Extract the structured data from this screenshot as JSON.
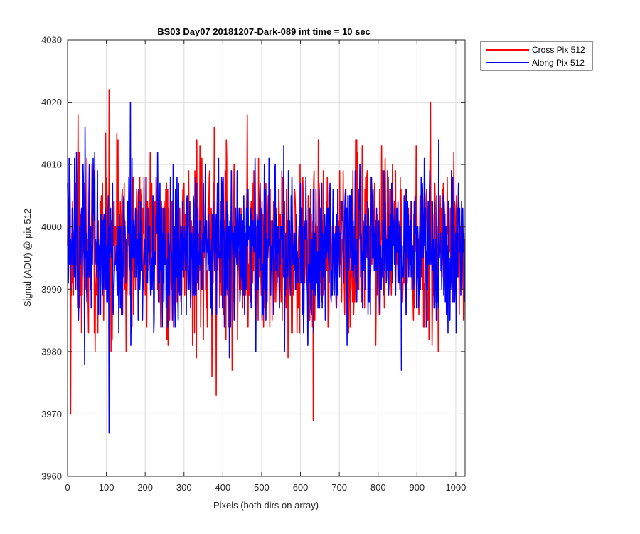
{
  "chart_data": {
    "type": "line",
    "title": "BS03 Day07 20181207-Dark-089 int time = 10 sec",
    "xlabel": "Pixels (both dirs on array)",
    "ylabel": "Signal (ADU) @ pix 512",
    "xlim": [
      0,
      1024
    ],
    "ylim": [
      3960,
      4030
    ],
    "xticks": [
      0,
      100,
      200,
      300,
      400,
      500,
      600,
      700,
      800,
      900,
      1000
    ],
    "yticks": [
      3960,
      3970,
      3980,
      3990,
      4000,
      4010,
      4020,
      4030
    ],
    "xtick_labels": [
      "0",
      "100",
      "200",
      "300",
      "400",
      "500",
      "600",
      "700",
      "800",
      "900",
      "1000"
    ],
    "ytick_labels": [
      "3960",
      "3970",
      "3980",
      "3990",
      "4000",
      "4010",
      "4020",
      "4030"
    ],
    "grid": true,
    "legend_position": "outside-top-right",
    "colors": {
      "series1": "#ff0000",
      "series2": "#0000ff",
      "grid": "#dcdcdc",
      "axis": "#262626"
    },
    "summary": {
      "n_points_per_series": 1024,
      "mean": 3997,
      "typical_range": [
        3980,
        4012
      ]
    },
    "series": [
      {
        "name": "Cross Pix 512",
        "color": "#ff0000",
        "extremes": [
          {
            "x": 8,
            "y": 3970
          },
          {
            "x": 107,
            "y": 4022
          },
          {
            "x": 633,
            "y": 3969
          },
          {
            "x": 935,
            "y": 4020
          }
        ]
      },
      {
        "name": "Along Pix 512",
        "color": "#0000ff",
        "extremes": [
          {
            "x": 107,
            "y": 3967
          },
          {
            "x": 162,
            "y": 4020
          }
        ]
      }
    ]
  }
}
